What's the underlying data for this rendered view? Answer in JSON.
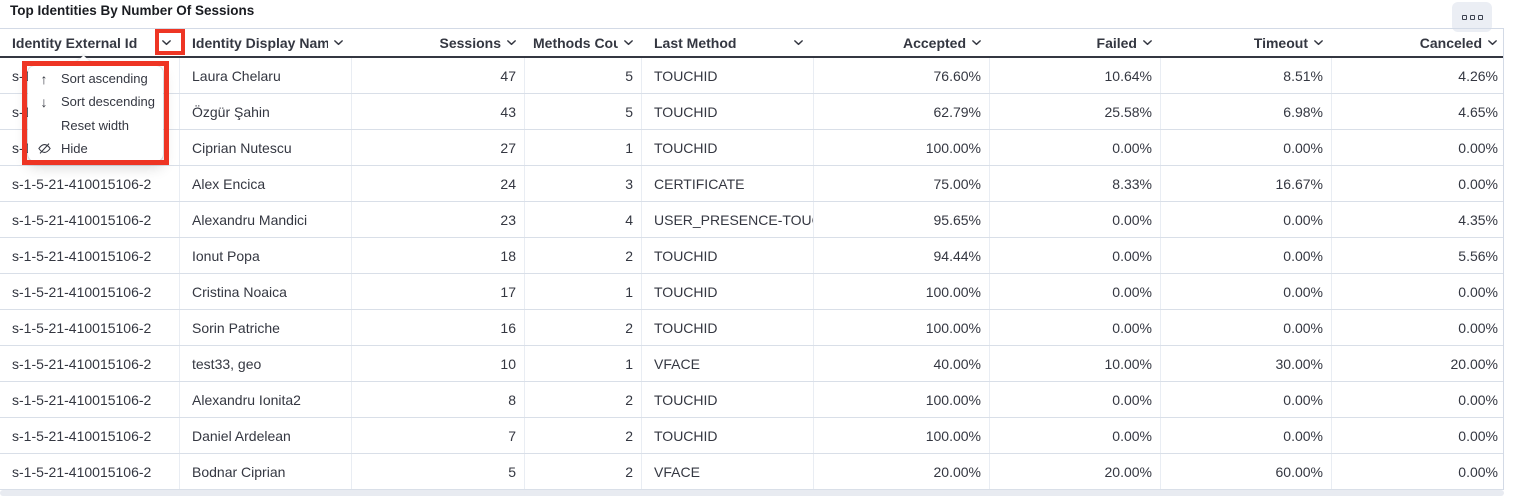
{
  "panel": {
    "title": "Top Identities By Number Of Sessions"
  },
  "corner_button": {
    "icon": "panel-options-icon"
  },
  "annotations": {
    "highlight_color": "#ee3524"
  },
  "table": {
    "columns": [
      {
        "id": "externalId",
        "label": "Identity External Id",
        "align": "left"
      },
      {
        "id": "displayName",
        "label": "Identity Display Name",
        "align": "left"
      },
      {
        "id": "sessions",
        "label": "Sessions",
        "align": "right"
      },
      {
        "id": "methodsCount",
        "label": "Methods Count",
        "align": "right"
      },
      {
        "id": "lastMethod",
        "label": "Last Method",
        "align": "left"
      },
      {
        "id": "accepted",
        "label": "Accepted",
        "align": "right"
      },
      {
        "id": "failed",
        "label": "Failed",
        "align": "right"
      },
      {
        "id": "timeout",
        "label": "Timeout",
        "align": "right"
      },
      {
        "id": "canceled",
        "label": "Canceled",
        "align": "right"
      }
    ],
    "rows": [
      {
        "externalId": "s-1-5-21-410015106-2",
        "displayName": "Laura Chelaru",
        "sessions": "47",
        "methodsCount": "5",
        "lastMethod": "TOUCHID",
        "accepted": "76.60%",
        "failed": "10.64%",
        "timeout": "8.51%",
        "canceled": "4.26%"
      },
      {
        "externalId": "s-1-5-21-410015106-2",
        "displayName": "Özgür Şahin",
        "sessions": "43",
        "methodsCount": "5",
        "lastMethod": "TOUCHID",
        "accepted": "62.79%",
        "failed": "25.58%",
        "timeout": "6.98%",
        "canceled": "4.65%"
      },
      {
        "externalId": "s-1-5-21-410015106-2",
        "displayName": "Ciprian Nutescu",
        "sessions": "27",
        "methodsCount": "1",
        "lastMethod": "TOUCHID",
        "accepted": "100.00%",
        "failed": "0.00%",
        "timeout": "0.00%",
        "canceled": "0.00%"
      },
      {
        "externalId": "s-1-5-21-410015106-2",
        "displayName": "Alex Encica",
        "sessions": "24",
        "methodsCount": "3",
        "lastMethod": "CERTIFICATE",
        "accepted": "75.00%",
        "failed": "8.33%",
        "timeout": "16.67%",
        "canceled": "0.00%"
      },
      {
        "externalId": "s-1-5-21-410015106-2",
        "displayName": "Alexandru Mandici",
        "sessions": "23",
        "methodsCount": "4",
        "lastMethod": "USER_PRESENCE-TOUC",
        "accepted": "95.65%",
        "failed": "0.00%",
        "timeout": "0.00%",
        "canceled": "4.35%"
      },
      {
        "externalId": "s-1-5-21-410015106-2",
        "displayName": "Ionut Popa",
        "sessions": "18",
        "methodsCount": "2",
        "lastMethod": "TOUCHID",
        "accepted": "94.44%",
        "failed": "0.00%",
        "timeout": "0.00%",
        "canceled": "5.56%"
      },
      {
        "externalId": "s-1-5-21-410015106-2",
        "displayName": "Cristina Noaica",
        "sessions": "17",
        "methodsCount": "1",
        "lastMethod": "TOUCHID",
        "accepted": "100.00%",
        "failed": "0.00%",
        "timeout": "0.00%",
        "canceled": "0.00%"
      },
      {
        "externalId": "s-1-5-21-410015106-2",
        "displayName": "Sorin Patriche",
        "sessions": "16",
        "methodsCount": "2",
        "lastMethod": "TOUCHID",
        "accepted": "100.00%",
        "failed": "0.00%",
        "timeout": "0.00%",
        "canceled": "0.00%"
      },
      {
        "externalId": "s-1-5-21-410015106-2",
        "displayName": "test33, geo",
        "sessions": "10",
        "methodsCount": "1",
        "lastMethod": "VFACE",
        "accepted": "40.00%",
        "failed": "10.00%",
        "timeout": "30.00%",
        "canceled": "20.00%"
      },
      {
        "externalId": "s-1-5-21-410015106-2",
        "displayName": "Alexandru Ionita2",
        "sessions": "8",
        "methodsCount": "2",
        "lastMethod": "TOUCHID",
        "accepted": "100.00%",
        "failed": "0.00%",
        "timeout": "0.00%",
        "canceled": "0.00%"
      },
      {
        "externalId": "s-1-5-21-410015106-2",
        "displayName": "Daniel Ardelean",
        "sessions": "7",
        "methodsCount": "2",
        "lastMethod": "TOUCHID",
        "accepted": "100.00%",
        "failed": "0.00%",
        "timeout": "0.00%",
        "canceled": "0.00%"
      },
      {
        "externalId": "s-1-5-21-410015106-2",
        "displayName": "Bodnar Ciprian",
        "sessions": "5",
        "methodsCount": "2",
        "lastMethod": "VFACE",
        "accepted": "20.00%",
        "failed": "20.00%",
        "timeout": "60.00%",
        "canceled": "0.00%"
      }
    ]
  },
  "column_menu": {
    "anchored_column": "Identity External Id",
    "items": [
      {
        "icon": "sort-ascending-arrow-icon",
        "label": "Sort ascending"
      },
      {
        "icon": "sort-descending-arrow-icon",
        "label": "Sort descending"
      },
      {
        "icon": "",
        "label": "Reset width"
      },
      {
        "icon": "eye-closed-icon",
        "label": "Hide"
      }
    ]
  }
}
